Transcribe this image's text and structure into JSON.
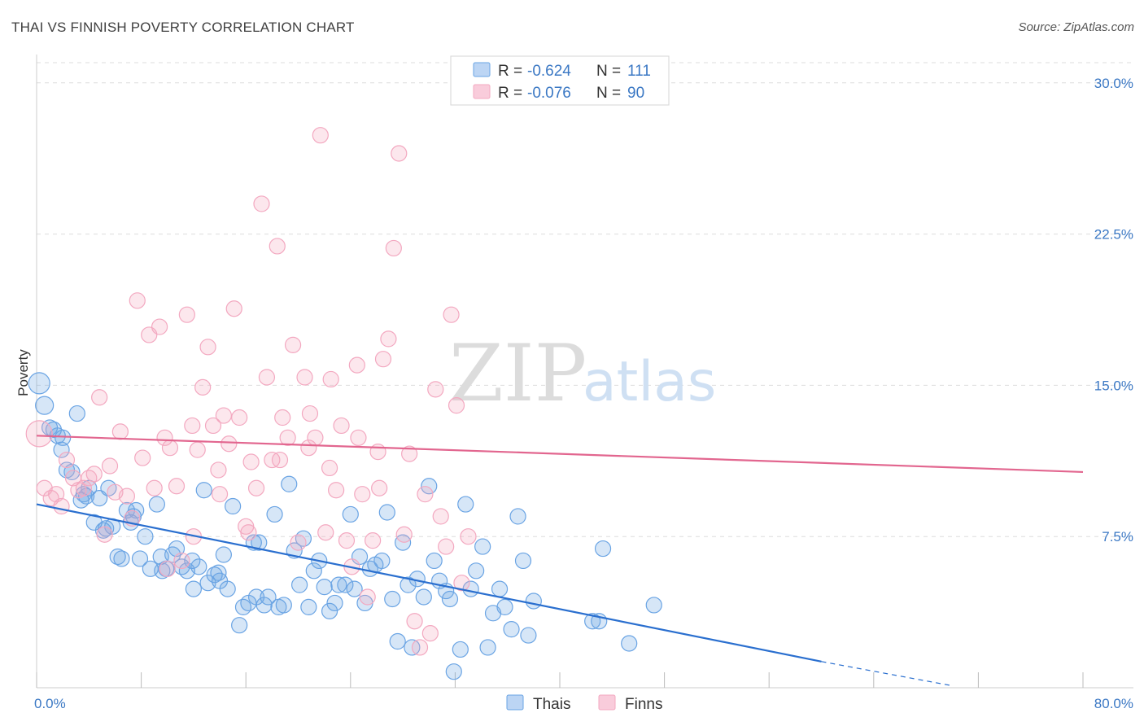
{
  "header": {
    "title": "THAI VS FINNISH POVERTY CORRELATION CHART",
    "source": "Source: ZipAtlas.com"
  },
  "watermark": {
    "zip": "ZIP",
    "atlas": "atlas"
  },
  "chart_data": {
    "type": "scatter",
    "title": "THAI VS FINNISH POVERTY CORRELATION CHART",
    "xlabel": "",
    "ylabel": "Poverty",
    "xlim": [
      0,
      80
    ],
    "ylim": [
      0,
      31
    ],
    "x_tick_labels": [
      "0.0%",
      "80.0%"
    ],
    "y_ticks": [
      {
        "value": 7.5,
        "label": "7.5%"
      },
      {
        "value": 15.0,
        "label": "15.0%"
      },
      {
        "value": 22.5,
        "label": "22.5%"
      },
      {
        "value": 30.0,
        "label": "30.0%"
      }
    ],
    "grid": true,
    "legend_placement": "top-center",
    "stats": [
      {
        "r_label": "R = ",
        "r_value": "-0.624",
        "n_label": "N = ",
        "n_value": "111"
      },
      {
        "r_label": "R = ",
        "r_value": "-0.076",
        "n_label": "N = ",
        "n_value": "90"
      }
    ],
    "series": [
      {
        "name": "Thais",
        "color": "#6aa4e4",
        "line_color": "#2a6fcf",
        "trend": {
          "x0": 0,
          "y0": 9.1,
          "x1": 60,
          "y1": 1.3,
          "dash_x1": 70,
          "dash_y1": 0.1
        },
        "points": [
          [
            0.2,
            15.1
          ],
          [
            0.6,
            14.0
          ],
          [
            1.0,
            12.9
          ],
          [
            1.3,
            12.8
          ],
          [
            1.6,
            12.5
          ],
          [
            1.9,
            11.8
          ],
          [
            2.3,
            10.8
          ],
          [
            2.7,
            10.7
          ],
          [
            3.1,
            13.6
          ],
          [
            3.4,
            9.3
          ],
          [
            3.6,
            9.6
          ],
          [
            4.0,
            9.9
          ],
          [
            4.4,
            8.2
          ],
          [
            4.8,
            9.4
          ],
          [
            5.1,
            7.8
          ],
          [
            5.5,
            9.9
          ],
          [
            5.8,
            8.0
          ],
          [
            6.2,
            6.5
          ],
          [
            6.5,
            6.4
          ],
          [
            6.9,
            8.8
          ],
          [
            7.2,
            8.2
          ],
          [
            7.6,
            8.8
          ],
          [
            7.9,
            6.4
          ],
          [
            8.3,
            7.5
          ],
          [
            8.7,
            5.9
          ],
          [
            9.2,
            9.1
          ],
          [
            9.5,
            6.5
          ],
          [
            9.9,
            5.9
          ],
          [
            10.4,
            6.6
          ],
          [
            10.7,
            6.9
          ],
          [
            11.1,
            6.0
          ],
          [
            11.5,
            5.8
          ],
          [
            12.0,
            4.9
          ],
          [
            12.4,
            6.0
          ],
          [
            12.8,
            9.8
          ],
          [
            13.1,
            5.2
          ],
          [
            13.6,
            5.6
          ],
          [
            13.9,
            5.7
          ],
          [
            14.3,
            6.6
          ],
          [
            14.6,
            4.9
          ],
          [
            15.0,
            9.0
          ],
          [
            15.5,
            3.1
          ],
          [
            15.8,
            4.0
          ],
          [
            16.2,
            4.2
          ],
          [
            16.6,
            7.2
          ],
          [
            17.0,
            7.2
          ],
          [
            17.4,
            4.1
          ],
          [
            17.7,
            4.5
          ],
          [
            18.2,
            8.6
          ],
          [
            18.5,
            4.0
          ],
          [
            18.9,
            4.1
          ],
          [
            19.3,
            10.1
          ],
          [
            19.7,
            6.8
          ],
          [
            20.1,
            5.1
          ],
          [
            20.4,
            7.4
          ],
          [
            20.8,
            4.0
          ],
          [
            21.2,
            5.8
          ],
          [
            21.6,
            6.3
          ],
          [
            22.0,
            5.0
          ],
          [
            22.4,
            3.8
          ],
          [
            22.8,
            4.2
          ],
          [
            23.1,
            5.1
          ],
          [
            23.6,
            5.1
          ],
          [
            24.0,
            8.6
          ],
          [
            24.3,
            4.9
          ],
          [
            24.7,
            6.5
          ],
          [
            25.1,
            4.2
          ],
          [
            25.5,
            5.9
          ],
          [
            25.9,
            6.1
          ],
          [
            26.4,
            6.3
          ],
          [
            26.8,
            8.7
          ],
          [
            27.2,
            4.4
          ],
          [
            27.6,
            2.3
          ],
          [
            28.0,
            7.2
          ],
          [
            28.4,
            5.1
          ],
          [
            28.7,
            2.0
          ],
          [
            29.1,
            5.4
          ],
          [
            29.6,
            4.5
          ],
          [
            30.0,
            10.0
          ],
          [
            30.4,
            6.3
          ],
          [
            30.8,
            5.3
          ],
          [
            31.3,
            4.8
          ],
          [
            31.6,
            4.4
          ],
          [
            31.9,
            0.8
          ],
          [
            32.4,
            1.9
          ],
          [
            32.8,
            9.1
          ],
          [
            33.2,
            4.9
          ],
          [
            33.6,
            5.8
          ],
          [
            34.1,
            7.0
          ],
          [
            34.5,
            2.0
          ],
          [
            34.9,
            3.7
          ],
          [
            35.4,
            4.9
          ],
          [
            35.8,
            4.0
          ],
          [
            36.3,
            2.9
          ],
          [
            36.8,
            8.5
          ],
          [
            37.2,
            6.3
          ],
          [
            37.6,
            2.6
          ],
          [
            38.0,
            4.3
          ],
          [
            42.5,
            3.3
          ],
          [
            43.0,
            3.3
          ],
          [
            43.3,
            6.9
          ],
          [
            45.3,
            2.2
          ],
          [
            47.2,
            4.1
          ],
          [
            2.0,
            12.4
          ],
          [
            3.8,
            9.5
          ],
          [
            5.3,
            7.9
          ],
          [
            7.4,
            8.5
          ],
          [
            9.6,
            5.8
          ],
          [
            11.9,
            6.3
          ],
          [
            14.0,
            5.3
          ],
          [
            16.8,
            4.5
          ]
        ]
      },
      {
        "name": "Finns",
        "color": "#f3a8c0",
        "line_color": "#e2668f",
        "trend": {
          "x0": 0,
          "y0": 12.5,
          "x1": 80,
          "y1": 10.7
        },
        "points": [
          [
            0.2,
            12.6
          ],
          [
            0.6,
            9.9
          ],
          [
            1.1,
            9.4
          ],
          [
            1.5,
            9.6
          ],
          [
            1.9,
            9.0
          ],
          [
            2.3,
            11.3
          ],
          [
            2.8,
            10.4
          ],
          [
            3.2,
            9.8
          ],
          [
            3.6,
            9.9
          ],
          [
            4.0,
            10.4
          ],
          [
            4.4,
            10.6
          ],
          [
            4.8,
            14.4
          ],
          [
            5.2,
            7.6
          ],
          [
            5.6,
            11.0
          ],
          [
            6.0,
            9.7
          ],
          [
            6.4,
            12.7
          ],
          [
            6.9,
            9.5
          ],
          [
            7.3,
            8.4
          ],
          [
            7.7,
            19.2
          ],
          [
            8.1,
            11.4
          ],
          [
            8.6,
            17.5
          ],
          [
            9.0,
            9.9
          ],
          [
            9.4,
            17.9
          ],
          [
            9.8,
            12.4
          ],
          [
            10.2,
            11.9
          ],
          [
            10.7,
            10.0
          ],
          [
            11.1,
            6.3
          ],
          [
            11.5,
            18.5
          ],
          [
            11.9,
            13.0
          ],
          [
            12.3,
            11.8
          ],
          [
            12.7,
            14.9
          ],
          [
            13.1,
            16.9
          ],
          [
            13.5,
            13.0
          ],
          [
            13.9,
            10.8
          ],
          [
            14.3,
            13.5
          ],
          [
            14.7,
            12.1
          ],
          [
            15.1,
            18.8
          ],
          [
            15.5,
            13.4
          ],
          [
            16.0,
            8.0
          ],
          [
            16.4,
            11.2
          ],
          [
            16.8,
            9.9
          ],
          [
            17.2,
            24.0
          ],
          [
            17.6,
            15.4
          ],
          [
            18.0,
            11.3
          ],
          [
            18.4,
            21.9
          ],
          [
            18.8,
            13.4
          ],
          [
            19.2,
            12.4
          ],
          [
            19.6,
            17.0
          ],
          [
            20.0,
            7.2
          ],
          [
            20.5,
            15.4
          ],
          [
            20.9,
            13.6
          ],
          [
            21.3,
            12.4
          ],
          [
            21.7,
            27.4
          ],
          [
            22.1,
            7.7
          ],
          [
            22.5,
            15.3
          ],
          [
            22.9,
            9.8
          ],
          [
            23.3,
            13.0
          ],
          [
            23.7,
            7.3
          ],
          [
            24.1,
            6.0
          ],
          [
            24.5,
            16.0
          ],
          [
            24.9,
            9.6
          ],
          [
            25.3,
            4.5
          ],
          [
            25.7,
            7.3
          ],
          [
            26.1,
            11.7
          ],
          [
            26.5,
            16.3
          ],
          [
            26.9,
            17.3
          ],
          [
            27.3,
            21.8
          ],
          [
            27.7,
            26.5
          ],
          [
            28.1,
            7.6
          ],
          [
            28.5,
            11.6
          ],
          [
            28.9,
            3.3
          ],
          [
            29.3,
            2.0
          ],
          [
            29.7,
            9.6
          ],
          [
            30.1,
            2.7
          ],
          [
            30.5,
            14.8
          ],
          [
            30.9,
            8.5
          ],
          [
            31.3,
            7.0
          ],
          [
            31.7,
            18.5
          ],
          [
            32.1,
            14.0
          ],
          [
            32.5,
            5.2
          ],
          [
            33.0,
            7.5
          ],
          [
            26.2,
            9.9
          ],
          [
            24.6,
            12.4
          ],
          [
            22.4,
            10.9
          ],
          [
            20.8,
            11.9
          ],
          [
            18.6,
            11.3
          ],
          [
            16.2,
            7.7
          ],
          [
            14.0,
            9.6
          ],
          [
            12.0,
            7.5
          ],
          [
            10.0,
            5.9
          ]
        ]
      }
    ]
  }
}
